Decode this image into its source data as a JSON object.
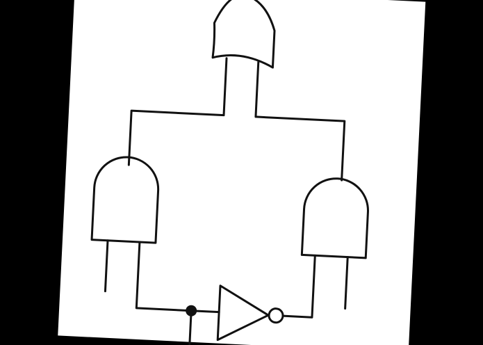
{
  "image": {
    "background_color": "#000000",
    "paper_color": "#ffffff",
    "ink_color": "#111111"
  },
  "diagram": {
    "kind": "logic-circuit",
    "rotation_deg": 2.8,
    "gates": [
      {
        "id": "or-gate",
        "type": "OR"
      },
      {
        "id": "and-gate-left",
        "type": "AND"
      },
      {
        "id": "and-gate-right",
        "type": "AND"
      },
      {
        "id": "not-gate",
        "type": "NOT"
      }
    ],
    "junctions": 1
  }
}
